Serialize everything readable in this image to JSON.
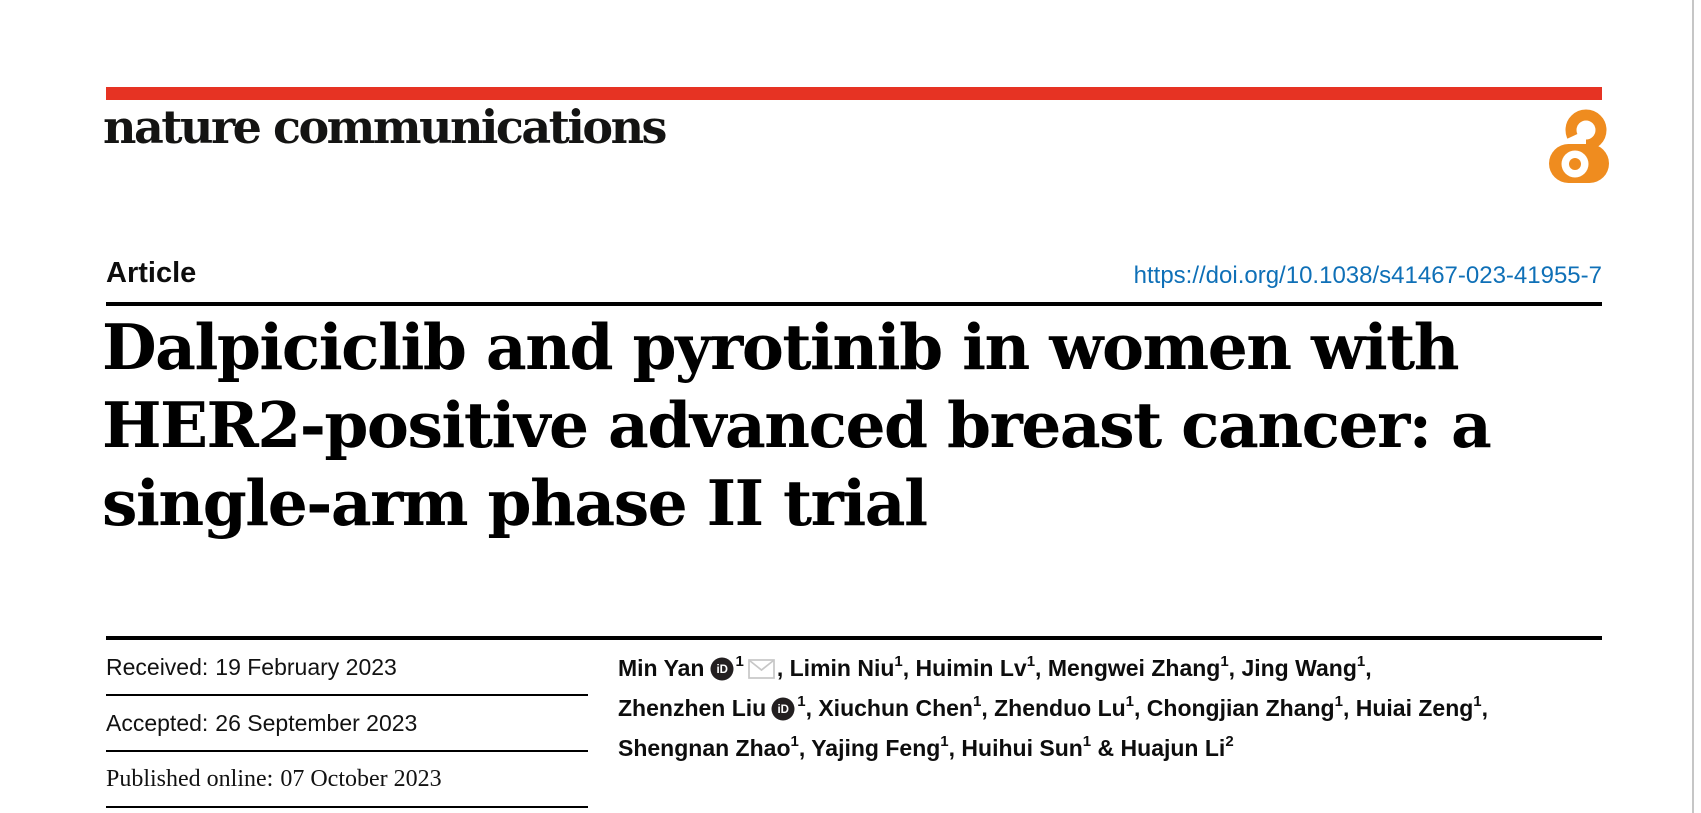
{
  "journal": {
    "logo_text": "nature communications"
  },
  "colors": {
    "brand_red": "#e63323",
    "link_blue": "#0f70b7",
    "open_access_orange": "#ef8c1f",
    "rule_black": "#000000",
    "page_edge_gray": "#c6c6c6"
  },
  "article": {
    "type_label": "Article",
    "doi_link": "https://doi.org/10.1038/s41467-023-41955-7",
    "title_lines": [
      "Dalpiciclib and pyrotinib in women with",
      "HER2-positive advanced breast cancer: a",
      "single-arm phase II trial"
    ]
  },
  "history": {
    "items": [
      {
        "label": "Received:",
        "date": "19 February 2023"
      },
      {
        "label": "Accepted:",
        "date": "26 September 2023"
      },
      {
        "label": "Published online:",
        "date": "07 October 2023"
      }
    ]
  },
  "authors": {
    "lines": [
      [
        {
          "name": "Min Yan",
          "orcid": true,
          "sup": "1",
          "email": true,
          "trail": ", "
        },
        {
          "name": "Limin Niu",
          "sup": "1",
          "trail": ", "
        },
        {
          "name": "Huimin Lv",
          "sup": "1",
          "trail": ", "
        },
        {
          "name": "Mengwei Zhang",
          "sup": "1",
          "trail": ", "
        },
        {
          "name": "Jing Wang",
          "sup": "1",
          "trail": ","
        }
      ],
      [
        {
          "name": "Zhenzhen Liu",
          "orcid": true,
          "sup": "1",
          "trail": ", "
        },
        {
          "name": "Xiuchun Chen",
          "sup": "1",
          "trail": ", "
        },
        {
          "name": "Zhenduo Lu",
          "sup": "1",
          "trail": ", "
        },
        {
          "name": "Chongjian Zhang",
          "sup": "1",
          "trail": ", "
        },
        {
          "name": "Huiai Zeng",
          "sup": "1",
          "trail": ","
        }
      ],
      [
        {
          "name": "Shengnan Zhao",
          "sup": "1",
          "trail": ", "
        },
        {
          "name": "Yajing Feng",
          "sup": "1",
          "trail": ", "
        },
        {
          "name": "Huihui Sun",
          "sup": "1",
          "trail": " & "
        },
        {
          "name": "Huajun Li",
          "sup": "2",
          "trail": ""
        }
      ]
    ]
  }
}
